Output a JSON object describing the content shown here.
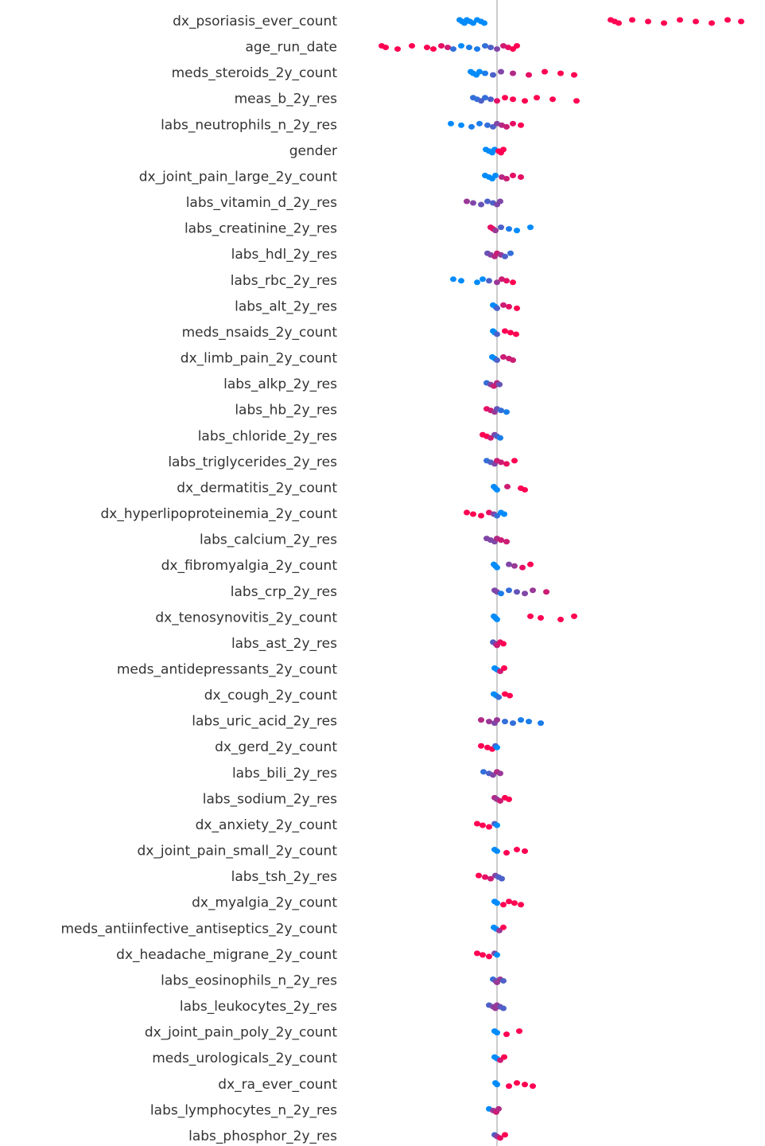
{
  "chart_data": {
    "type": "beeswarm",
    "categories": [
      "dx_psoriasis_ever_count",
      "age_run_date",
      "meds_steroids_2y_count",
      "meas_b_2y_res",
      "labs_neutrophils_n_2y_res",
      "gender",
      "dx_joint_pain_large_2y_count",
      "labs_vitamin_d_2y_res",
      "labs_creatinine_2y_res",
      "labs_hdl_2y_res",
      "labs_rbc_2y_res",
      "labs_alt_2y_res",
      "meds_nsaids_2y_count",
      "dx_limb_pain_2y_count",
      "labs_alkp_2y_res",
      "labs_hb_2y_res",
      "labs_chloride_2y_res",
      "labs_triglycerides_2y_res",
      "dx_dermatitis_2y_count",
      "dx_hyperlipoproteinemia_2y_count",
      "labs_calcium_2y_res",
      "dx_fibromyalgia_2y_count",
      "labs_crp_2y_res",
      "dx_tenosynovitis_2y_count",
      "labs_ast_2y_res",
      "meds_antidepressants_2y_count",
      "dx_cough_2y_count",
      "labs_uric_acid_2y_res",
      "dx_gerd_2y_count",
      "labs_bili_2y_res",
      "labs_sodium_2y_res",
      "dx_anxiety_2y_count",
      "dx_joint_pain_small_2y_count",
      "labs_tsh_2y_res",
      "dx_myalgia_2y_count",
      "meds_antiinfective_antiseptics_2y_count",
      "dx_headache_migrane_2y_count",
      "labs_eosinophils_n_2y_res",
      "labs_leukocytes_2y_res",
      "dx_joint_pain_poly_2y_count",
      "meds_urologicals_2y_count",
      "dx_ra_ever_count",
      "labs_lymphocytes_n_2y_res",
      "labs_phosphor_2y_res"
    ],
    "swarms": [
      {
        "values": [
          -0.47,
          -0.44,
          -0.41,
          -0.38,
          -0.34,
          -0.3,
          -0.25,
          -0.2,
          -0.16,
          1.43,
          1.48,
          1.53,
          1.7,
          1.9,
          2.1,
          2.3,
          2.5,
          2.7,
          2.9,
          3.07
        ],
        "feature_values": [
          0,
          0,
          0,
          0,
          0,
          0,
          0,
          0,
          0,
          1,
          1,
          1,
          1,
          1,
          1,
          1,
          1,
          1,
          1,
          1
        ]
      },
      {
        "values": [
          -1.45,
          -1.4,
          -1.25,
          -1.07,
          -0.88,
          -0.8,
          -0.7,
          -0.62,
          -0.55,
          -0.45,
          -0.35,
          -0.25,
          -0.15,
          -0.08,
          0.0,
          0.08,
          0.14,
          0.2,
          0.25
        ],
        "feature_values": [
          1,
          1,
          1,
          1,
          1,
          1,
          0.9,
          0.8,
          0.2,
          0,
          0.1,
          0.1,
          0.2,
          0.3,
          0.5,
          0.8,
          0.9,
          1,
          1
        ]
      },
      {
        "values": [
          -0.33,
          -0.3,
          -0.26,
          -0.22,
          -0.15,
          -0.05,
          0.05,
          0.2,
          0.4,
          0.6,
          0.8,
          0.97
        ],
        "feature_values": [
          0,
          0,
          0,
          0,
          0.1,
          0.3,
          0.5,
          0.7,
          0.9,
          1,
          1,
          1
        ]
      },
      {
        "values": [
          -0.3,
          -0.25,
          -0.2,
          -0.15,
          -0.08,
          0.0,
          0.1,
          0.2,
          0.35,
          0.5,
          0.7,
          1.0
        ],
        "feature_values": [
          0.2,
          0.2,
          0.3,
          0.2,
          0.3,
          0.9,
          1,
          1,
          1,
          1,
          1,
          1
        ]
      },
      {
        "values": [
          -0.58,
          -0.45,
          -0.32,
          -0.22,
          -0.12,
          -0.05,
          0.0,
          0.06,
          0.12,
          0.2,
          0.3
        ],
        "feature_values": [
          0,
          0,
          0.1,
          0.1,
          0.2,
          0.3,
          0.5,
          0.7,
          0.8,
          0.9,
          1
        ]
      },
      {
        "values": [
          -0.14,
          -0.1,
          -0.06,
          -0.03,
          0.02,
          0.05,
          0.08
        ],
        "feature_values": [
          0,
          0,
          0,
          0,
          1,
          1,
          1
        ]
      },
      {
        "values": [
          -0.15,
          -0.1,
          -0.06,
          -0.02,
          0.06,
          0.12,
          0.2,
          0.3
        ],
        "feature_values": [
          0,
          0,
          0,
          0,
          0.7,
          0.8,
          0.9,
          0.9
        ]
      },
      {
        "values": [
          -0.38,
          -0.3,
          -0.2,
          -0.12,
          -0.05,
          0.0,
          0.04
        ],
        "feature_values": [
          0.6,
          0.5,
          0.4,
          0.3,
          0.3,
          0.5,
          0.5
        ]
      },
      {
        "values": [
          -0.08,
          -0.05,
          -0.02,
          0.05,
          0.15,
          0.25,
          0.42
        ],
        "feature_values": [
          0.9,
          0.9,
          0.6,
          0.3,
          0.1,
          0,
          0
        ]
      },
      {
        "values": [
          -0.12,
          -0.08,
          -0.03,
          0.0,
          0.05,
          0.1,
          0.17
        ],
        "feature_values": [
          0.4,
          0.5,
          0.7,
          0.8,
          0.6,
          0.3,
          0.2
        ]
      },
      {
        "values": [
          -0.55,
          -0.45,
          -0.25,
          -0.18,
          -0.1,
          0.0,
          0.06,
          0.12,
          0.2
        ],
        "feature_values": [
          0,
          0,
          0,
          0,
          0.3,
          0.6,
          0.8,
          0.9,
          1
        ]
      },
      {
        "values": [
          -0.05,
          -0.02,
          0.0,
          0.08,
          0.15,
          0.25
        ],
        "feature_values": [
          0,
          0,
          0.3,
          0.8,
          0.9,
          1
        ]
      },
      {
        "values": [
          -0.05,
          -0.03,
          0.0,
          0.1,
          0.17,
          0.24
        ],
        "feature_values": [
          0,
          0,
          0.3,
          1,
          1,
          1
        ]
      },
      {
        "values": [
          -0.06,
          -0.03,
          0.0,
          0.08,
          0.15,
          0.2
        ],
        "feature_values": [
          0,
          0,
          0.3,
          0.8,
          0.8,
          0.8
        ]
      },
      {
        "values": [
          -0.13,
          -0.08,
          -0.04,
          0.0,
          0.03
        ],
        "feature_values": [
          0.2,
          0.5,
          0.8,
          0.7,
          0.4
        ]
      },
      {
        "values": [
          -0.13,
          -0.08,
          -0.03,
          0.0,
          0.05,
          0.12
        ],
        "feature_values": [
          0.9,
          0.8,
          0.6,
          0.4,
          0.2,
          0.1
        ]
      },
      {
        "values": [
          -0.18,
          -0.13,
          -0.08,
          -0.03,
          0.0,
          0.04
        ],
        "feature_values": [
          1,
          1,
          0.8,
          0.5,
          0.3,
          0.1
        ]
      },
      {
        "values": [
          -0.13,
          -0.08,
          -0.03,
          0.0,
          0.05,
          0.12,
          0.22
        ],
        "feature_values": [
          0.2,
          0.3,
          0.5,
          0.8,
          0.8,
          0.9,
          1
        ]
      },
      {
        "values": [
          -0.04,
          -0.02,
          0.0,
          0.13,
          0.3,
          0.35
        ],
        "feature_values": [
          0,
          0,
          0,
          0.8,
          1,
          1
        ]
      },
      {
        "values": [
          -0.38,
          -0.3,
          -0.2,
          -0.1,
          -0.04,
          0.0,
          0.05,
          0.09
        ],
        "feature_values": [
          1,
          1,
          1,
          0.9,
          0.5,
          0.2,
          0,
          0
        ]
      },
      {
        "values": [
          -0.13,
          -0.08,
          -0.03,
          0.0,
          0.05,
          0.12
        ],
        "feature_values": [
          0.5,
          0.5,
          0.5,
          0.7,
          0.8,
          0.8
        ]
      },
      {
        "values": [
          -0.04,
          -0.02,
          0.0,
          0.15,
          0.22,
          0.32,
          0.42
        ],
        "feature_values": [
          0,
          0,
          0,
          0.5,
          0.6,
          0.9,
          1
        ]
      },
      {
        "values": [
          -0.03,
          0.0,
          0.05,
          0.15,
          0.25,
          0.35,
          0.45,
          0.62
        ],
        "feature_values": [
          0.5,
          0.5,
          0.1,
          0.2,
          0.4,
          0.5,
          0.6,
          0.8
        ]
      },
      {
        "values": [
          -0.04,
          -0.02,
          0.0,
          0.42,
          0.55,
          0.8,
          0.97
        ],
        "feature_values": [
          0,
          0,
          0,
          1,
          1,
          1,
          1
        ]
      },
      {
        "values": [
          -0.05,
          -0.02,
          0.0,
          0.04,
          0.08
        ],
        "feature_values": [
          0.3,
          0.5,
          0.8,
          0.9,
          1
        ]
      },
      {
        "values": [
          -0.03,
          0.0,
          0.04,
          0.09
        ],
        "feature_values": [
          0,
          0,
          0.8,
          1
        ]
      },
      {
        "values": [
          -0.04,
          -0.01,
          0.02,
          0.1,
          0.16
        ],
        "feature_values": [
          0,
          0,
          0.2,
          1,
          1
        ]
      },
      {
        "values": [
          -0.2,
          -0.1,
          -0.03,
          0.0,
          0.1,
          0.2,
          0.3,
          0.4,
          0.55
        ],
        "feature_values": [
          0.7,
          0.6,
          0.5,
          0.6,
          0.2,
          0.2,
          0.1,
          0.1,
          0.1
        ]
      },
      {
        "values": [
          -0.2,
          -0.12,
          -0.06,
          -0.02,
          0.0
        ],
        "feature_values": [
          1,
          1,
          1,
          0.3,
          0
        ]
      },
      {
        "values": [
          -0.17,
          -0.1,
          -0.05,
          0.0,
          0.04
        ],
        "feature_values": [
          0.2,
          0.3,
          0.5,
          0.7,
          0.6
        ]
      },
      {
        "values": [
          -0.03,
          0.0,
          0.04,
          0.1,
          0.15
        ],
        "feature_values": [
          0.7,
          0.6,
          0.8,
          1,
          1
        ]
      },
      {
        "values": [
          -0.25,
          -0.18,
          -0.1,
          -0.03,
          0.0
        ],
        "feature_values": [
          1,
          1,
          1,
          0.3,
          0
        ]
      },
      {
        "values": [
          -0.03,
          0.0,
          0.12,
          0.25,
          0.35
        ],
        "feature_values": [
          0,
          0,
          1,
          1,
          1
        ]
      },
      {
        "values": [
          -0.23,
          -0.15,
          -0.08,
          -0.02,
          0.02,
          0.06
        ],
        "feature_values": [
          1,
          0.9,
          0.8,
          0.5,
          0.3,
          0.3
        ]
      },
      {
        "values": [
          -0.03,
          0.0,
          0.08,
          0.15,
          0.22,
          0.3
        ],
        "feature_values": [
          0,
          0,
          1,
          1,
          1,
          1
        ]
      },
      {
        "values": [
          -0.04,
          -0.01,
          0.03,
          0.08
        ],
        "feature_values": [
          0,
          0,
          0.6,
          1
        ]
      },
      {
        "values": [
          -0.25,
          -0.18,
          -0.1,
          -0.03,
          0.0
        ],
        "feature_values": [
          1,
          1,
          1,
          0.5,
          0
        ]
      },
      {
        "values": [
          -0.05,
          -0.02,
          0.0,
          0.04,
          0.08
        ],
        "feature_values": [
          0.2,
          0.4,
          0.6,
          0.6,
          0.3
        ]
      },
      {
        "values": [
          -0.1,
          -0.05,
          -0.02,
          0.0,
          0.04,
          0.08
        ],
        "feature_values": [
          0.3,
          0.5,
          0.6,
          0.6,
          0.4,
          0.3
        ]
      },
      {
        "values": [
          -0.03,
          0.0,
          0.12,
          0.28
        ],
        "feature_values": [
          0,
          0,
          1,
          1
        ]
      },
      {
        "values": [
          -0.03,
          0.0,
          0.04,
          0.09
        ],
        "feature_values": [
          0,
          0,
          0.8,
          1
        ]
      },
      {
        "values": [
          -0.02,
          0.0,
          0.15,
          0.25,
          0.35,
          0.45
        ],
        "feature_values": [
          0,
          0,
          1,
          1,
          1,
          1
        ]
      },
      {
        "values": [
          -0.1,
          -0.05,
          -0.01,
          0.02
        ],
        "feature_values": [
          0,
          0.6,
          0.8,
          0.7
        ]
      },
      {
        "values": [
          -0.03,
          0.0,
          0.04,
          0.1
        ],
        "feature_values": [
          0.3,
          0.6,
          0.9,
          1
        ]
      }
    ],
    "xlim": [
      -1.85,
      3.25
    ],
    "reference_line": 0,
    "colormap": [
      "#008bfb",
      "#ff0052"
    ]
  }
}
